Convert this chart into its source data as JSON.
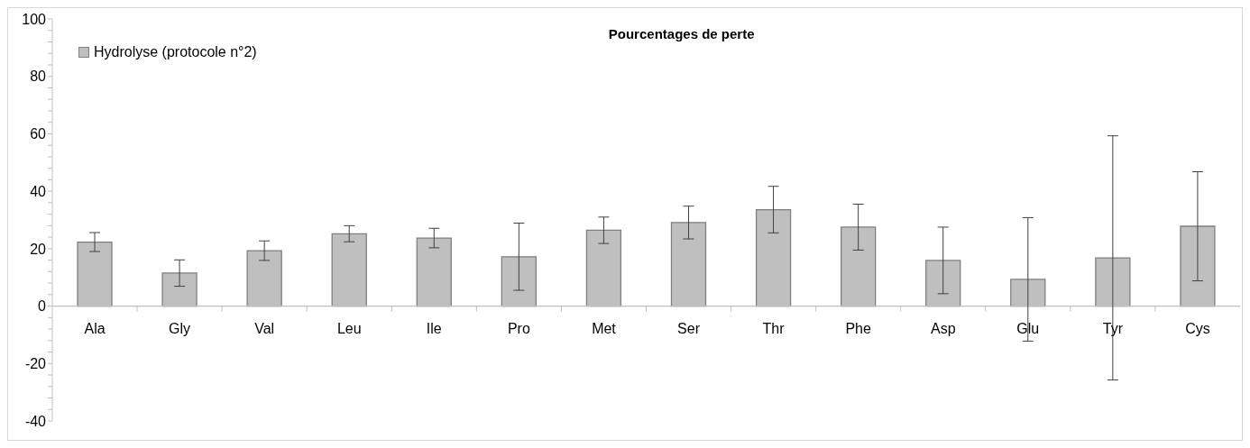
{
  "chart_data": {
    "type": "bar",
    "title": "Pourcentages de perte",
    "categories": [
      "Ala",
      "Gly",
      "Val",
      "Leu",
      "Ile",
      "Pro",
      "Met",
      "Ser",
      "Thr",
      "Phe",
      "Asp",
      "Glu",
      "Tyr",
      "Cys"
    ],
    "series": [
      {
        "name": "Hydrolyse (protocole n°2)",
        "color": "#bfbfbf",
        "values": [
          22.3,
          11.5,
          19.3,
          25.2,
          23.7,
          17.2,
          26.4,
          29.1,
          33.6,
          27.5,
          15.9,
          9.3,
          16.8,
          27.8
        ],
        "errors": [
          3.3,
          4.6,
          3.4,
          2.8,
          3.4,
          11.7,
          4.6,
          5.7,
          8.1,
          8.0,
          11.6,
          21.5,
          42.5,
          19.0
        ]
      }
    ],
    "ylim": [
      -40,
      100
    ],
    "yticks": [
      -40,
      {
        "value": -36,
        "label": null
      },
      {
        "value": -32,
        "label": null
      },
      {
        "value": -28,
        "label": null
      },
      {
        "value": -24,
        "label": null
      },
      -20,
      {
        "value": -16,
        "label": null
      },
      {
        "value": -12,
        "label": null
      },
      {
        "value": -8,
        "label": null
      },
      {
        "value": -4,
        "label": null
      },
      0,
      {
        "value": 4,
        "label": null
      },
      {
        "value": 8,
        "label": null
      },
      {
        "value": 12,
        "label": null
      },
      {
        "value": 16,
        "label": null
      },
      20,
      {
        "value": 24,
        "label": null
      },
      {
        "value": 28,
        "label": null
      },
      {
        "value": 32,
        "label": null
      },
      {
        "value": 36,
        "label": null
      },
      40,
      {
        "value": 44,
        "label": null
      },
      {
        "value": 48,
        "label": null
      },
      {
        "value": 52,
        "label": null
      },
      {
        "value": 56,
        "label": null
      },
      60,
      {
        "value": 64,
        "label": null
      },
      {
        "value": 68,
        "label": null
      },
      {
        "value": 72,
        "label": null
      },
      {
        "value": 76,
        "label": null
      },
      80,
      {
        "value": 84,
        "label": null
      },
      {
        "value": 88,
        "label": null
      },
      {
        "value": 92,
        "label": null
      },
      {
        "value": 96,
        "label": null
      },
      100
    ],
    "legend": "top left"
  }
}
